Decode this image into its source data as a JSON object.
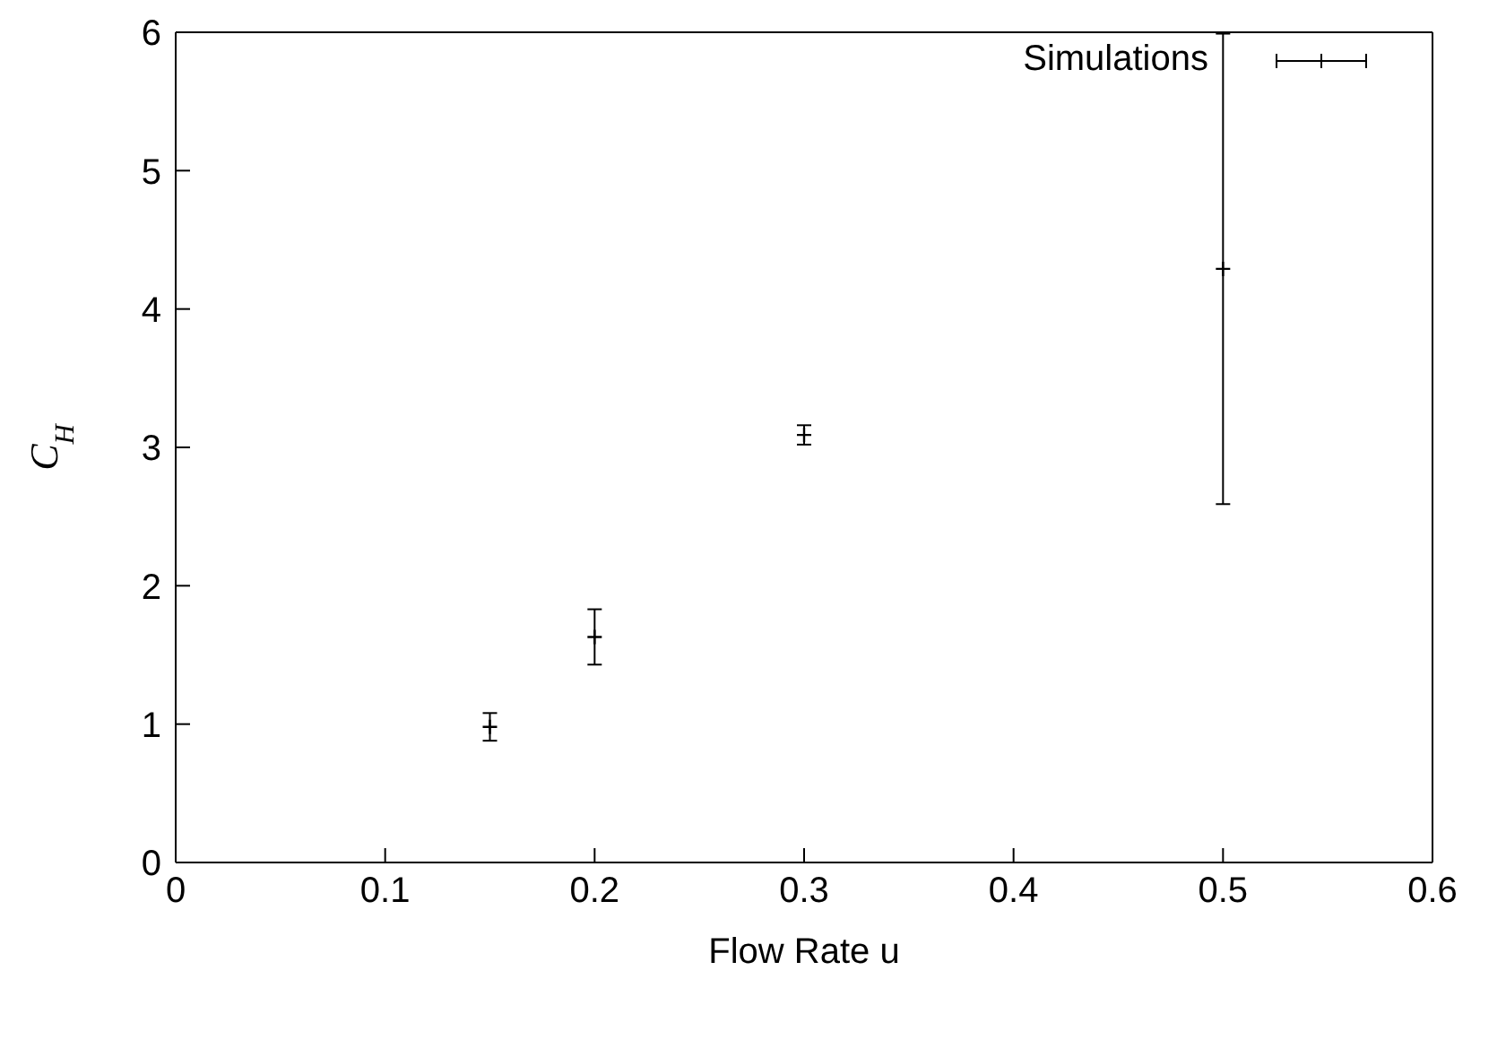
{
  "chart_data": {
    "type": "scatter",
    "xlabel": "Flow Rate u",
    "ylabel": "C$_{H}$",
    "x": [
      0.15,
      0.2,
      0.3,
      0.5
    ],
    "series": [
      {
        "name": "Simulations",
        "color": "#000000",
        "values": [
          0.98,
          1.63,
          3.09,
          4.29
        ],
        "errors": [
          0.1,
          0.2,
          0.07,
          1.7
        ]
      }
    ],
    "xlim": [
      0,
      0.6
    ],
    "xticks": [
      0,
      0.1,
      0.2,
      0.3,
      0.4,
      0.5,
      0.6
    ],
    "ylim": [
      0,
      6
    ],
    "yticks": [
      0,
      1,
      2,
      3,
      4,
      5,
      6
    ],
    "grid": false,
    "legend": "top right",
    "marker": "cross"
  }
}
